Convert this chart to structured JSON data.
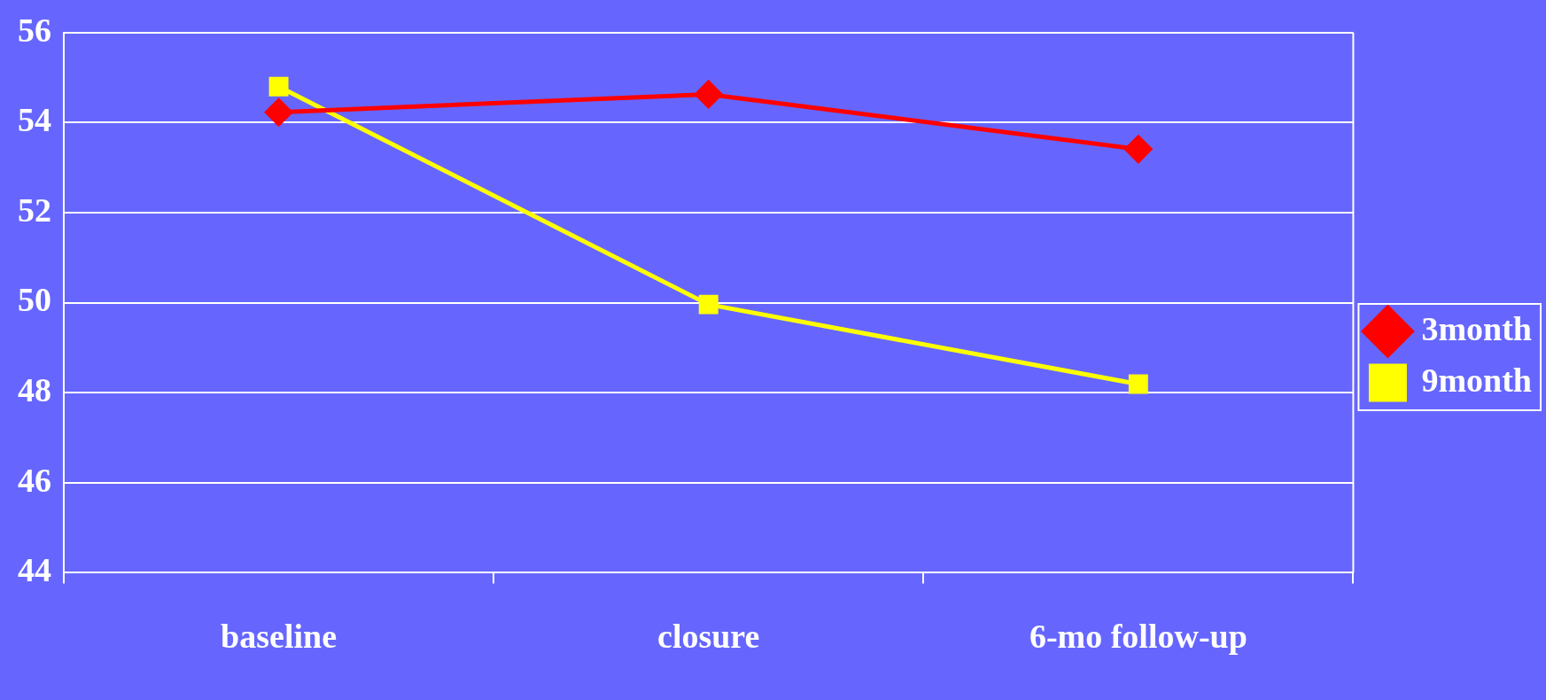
{
  "chart_data": {
    "type": "line",
    "categories": [
      "baseline",
      "closure",
      "6-mo follow-up"
    ],
    "series": [
      {
        "name": "3month",
        "color": "#ff0000",
        "marker": "diamond",
        "values": [
          54.23,
          54.63,
          53.41
        ]
      },
      {
        "name": "9month",
        "color": "#ffff00",
        "marker": "square",
        "values": [
          54.8,
          49.96,
          48.19
        ]
      }
    ],
    "ylim": [
      44,
      56
    ],
    "yticks": [
      44,
      46,
      48,
      50,
      52,
      54,
      56
    ],
    "grid": "y",
    "legend": "right",
    "line_style": "solid"
  }
}
